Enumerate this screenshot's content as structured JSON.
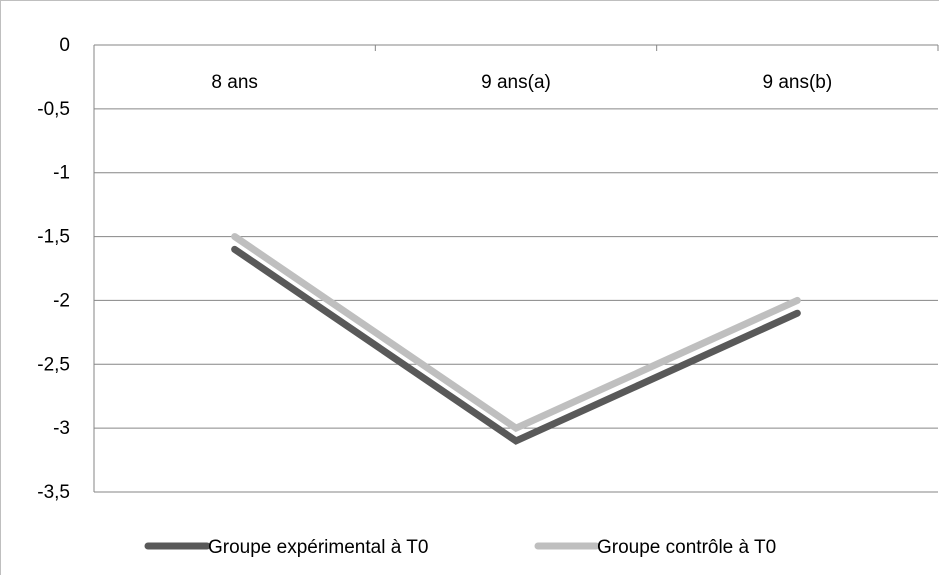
{
  "chart_data": {
    "type": "line",
    "title": "",
    "xlabel": "",
    "ylabel": "",
    "categories": [
      "8 ans",
      "9 ans(a)",
      "9 ans(b)"
    ],
    "ylim": [
      -3.5,
      0
    ],
    "yticks": [
      0,
      -0.5,
      -1,
      -1.5,
      -2,
      -2.5,
      -3,
      -3.5
    ],
    "ytick_labels": [
      "0",
      "-0,5",
      "-1",
      "-1,5",
      "-2",
      "-2,5",
      "-3",
      "-3,5"
    ],
    "x_axis_position": "top",
    "grid": true,
    "legend_position": "bottom",
    "series": [
      {
        "name": "Groupe expérimental à T0",
        "values": [
          -1.6,
          -3.1,
          -2.1
        ],
        "color": "#595959"
      },
      {
        "name": "Groupe contrôle à T0",
        "values": [
          -1.5,
          -3.0,
          -2.0
        ],
        "color": "#bfbfbf"
      }
    ]
  }
}
